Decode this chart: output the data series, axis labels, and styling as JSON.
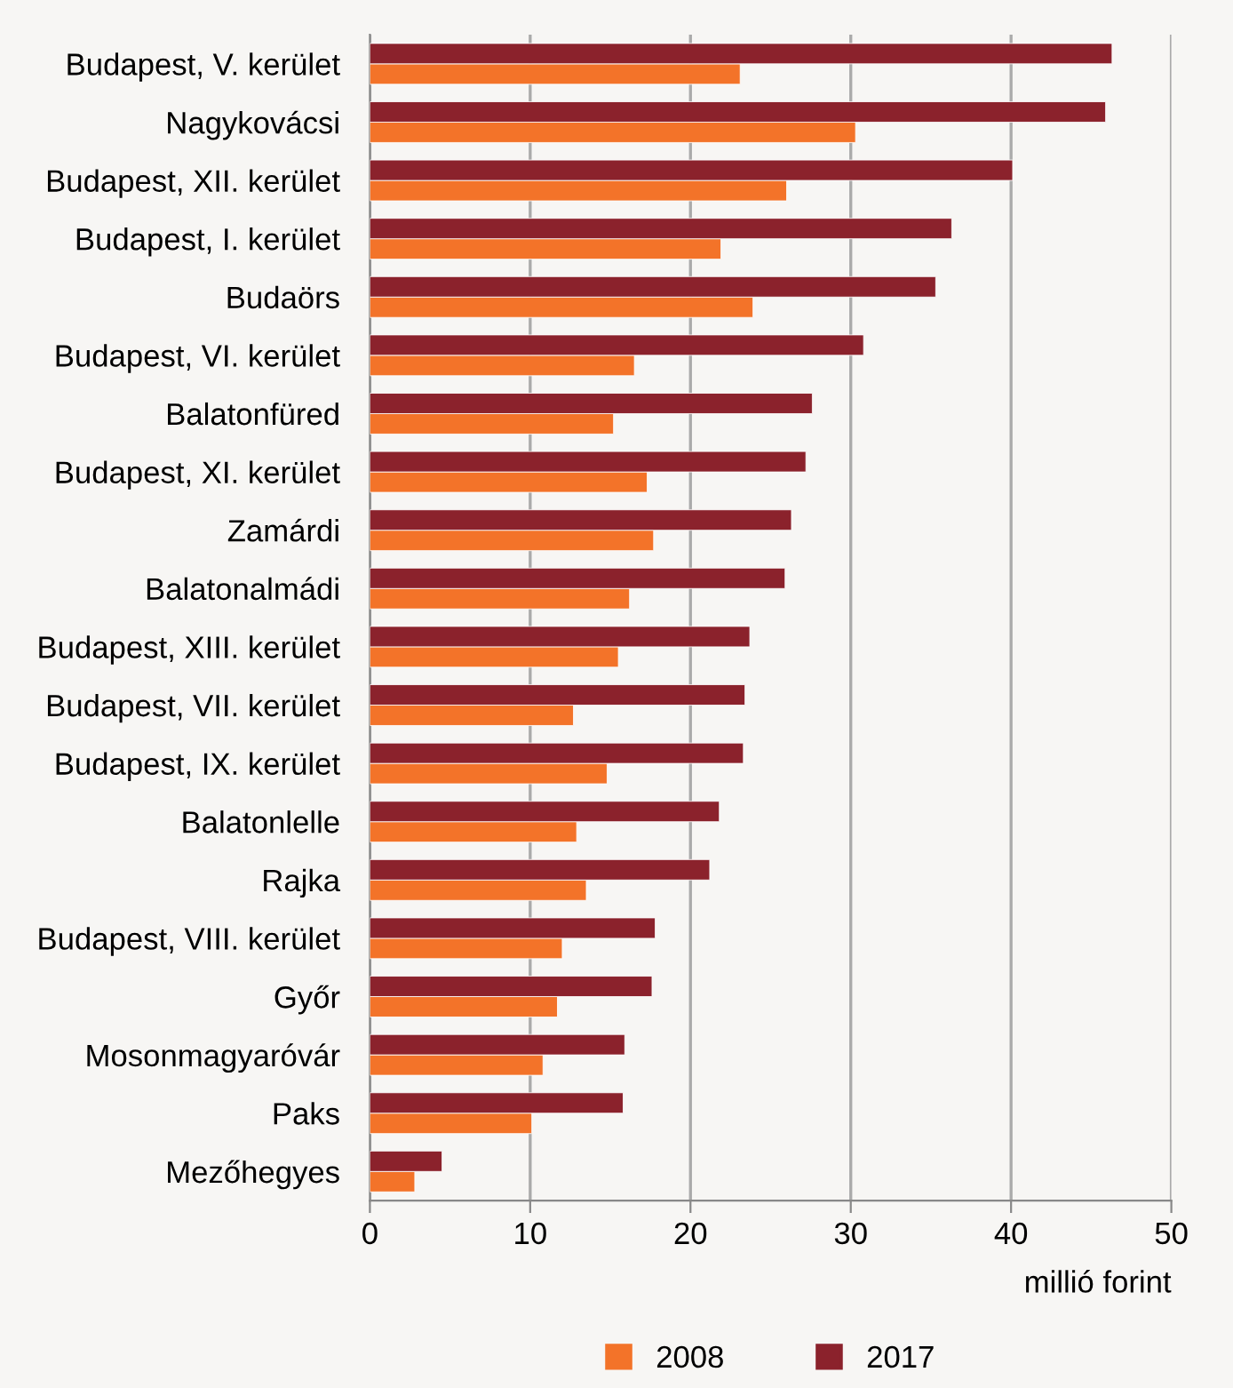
{
  "chart_data": {
    "type": "bar",
    "orientation": "horizontal",
    "xlabel": "millió forint",
    "categories": [
      "Budapest, V. kerület",
      "Nagykovácsi",
      "Budapest, XII. kerület",
      "Budapest, I. kerület",
      "Budaörs",
      "Budapest, VI. kerület",
      "Balatonfüred",
      "Budapest, XI. kerület",
      "Zamárdi",
      "Balatonalmádi",
      "Budapest, XIII. kerület",
      "Budapest, VII. kerület",
      "Budapest, IX. kerület",
      "Balatonlelle",
      "Rajka",
      "Budapest, VIII. kerület",
      "Győr",
      "Mosonmagyaróvár",
      "Paks",
      "Mezőhegyes"
    ],
    "series": [
      {
        "name": "2008",
        "color": "#f37329",
        "values": [
          23.1,
          30.3,
          26.0,
          21.9,
          23.9,
          16.5,
          15.2,
          17.3,
          17.7,
          16.2,
          15.5,
          12.7,
          14.8,
          12.9,
          13.5,
          12.0,
          11.7,
          10.8,
          10.1,
          2.8
        ]
      },
      {
        "name": "2017",
        "color": "#8b222c",
        "values": [
          46.3,
          45.9,
          40.1,
          36.3,
          35.3,
          30.8,
          27.6,
          27.2,
          26.3,
          25.9,
          23.7,
          23.4,
          23.3,
          21.8,
          21.2,
          17.8,
          17.6,
          15.9,
          15.8,
          4.5
        ]
      }
    ],
    "xlim": [
      0,
      50
    ],
    "xticks": [
      0,
      10,
      20,
      30,
      40,
      50
    ],
    "grid": "x",
    "legend": "bottom"
  }
}
